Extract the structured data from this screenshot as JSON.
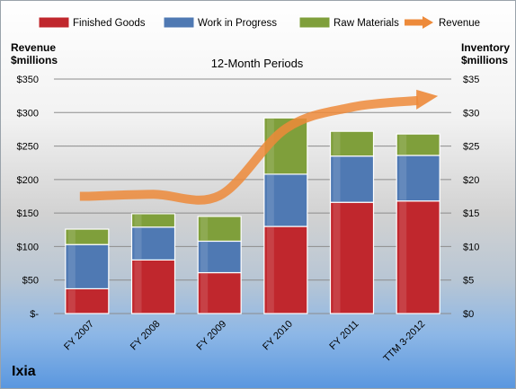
{
  "company": "Ixia",
  "chart_data": {
    "type": "bar",
    "stacked": true,
    "title": "12-Month Periods",
    "categories": [
      "FY 2007",
      "FY 2008",
      "FY 2009",
      "FY 2010",
      "FY 2011",
      "TTM 3-2012"
    ],
    "left_axis": {
      "title_line1": "Revenue",
      "title_line2": "$millions",
      "ylim": [
        0,
        350
      ],
      "ticks": [
        {
          "value": 0,
          "label": "$-"
        },
        {
          "value": 50,
          "label": "$50"
        },
        {
          "value": 100,
          "label": "$100"
        },
        {
          "value": 150,
          "label": "$150"
        },
        {
          "value": 200,
          "label": "$200"
        },
        {
          "value": 250,
          "label": "$250"
        },
        {
          "value": 300,
          "label": "$300"
        },
        {
          "value": 350,
          "label": "$350"
        }
      ]
    },
    "right_axis": {
      "title_line1": "Inventory",
      "title_line2": "$millions",
      "ylim": [
        0,
        35
      ],
      "ticks": [
        {
          "value": 0,
          "label": "$0"
        },
        {
          "value": 5,
          "label": "$5"
        },
        {
          "value": 10,
          "label": "$10"
        },
        {
          "value": 15,
          "label": "$15"
        },
        {
          "value": 20,
          "label": "$20"
        },
        {
          "value": 25,
          "label": "$25"
        },
        {
          "value": 30,
          "label": "$30"
        },
        {
          "value": 35,
          "label": "$35"
        }
      ]
    },
    "series": [
      {
        "name": "Finished Goods",
        "axis": "right",
        "color": "#c0272d",
        "values": [
          3.7,
          8.0,
          6.1,
          13.0,
          16.6,
          16.8
        ]
      },
      {
        "name": "Work in Progress",
        "axis": "right",
        "color": "#4f79b3",
        "values": [
          6.6,
          4.9,
          4.7,
          7.8,
          6.9,
          6.8
        ]
      },
      {
        "name": "Raw Materials",
        "axis": "right",
        "color": "#7f9f3b",
        "values": [
          2.3,
          2.0,
          3.7,
          8.4,
          3.7,
          3.2
        ]
      }
    ],
    "line_series": {
      "name": "Revenue",
      "axis": "left",
      "color": "#ed8a3a",
      "values": [
        175,
        178,
        176,
        276,
        308,
        318
      ]
    },
    "legend_position": "top",
    "grid": true
  }
}
